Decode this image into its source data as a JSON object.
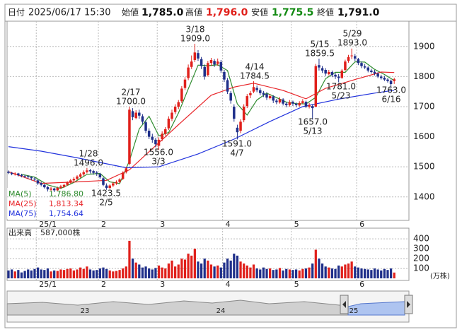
{
  "header": {
    "date_label": "日付",
    "date": "2025/06/17 15:30",
    "fields": [
      {
        "label": "始値",
        "value": "1,785.0",
        "color": "#111111"
      },
      {
        "label": "高値",
        "value": "1,796.0",
        "color": "#e0201b"
      },
      {
        "label": "安値",
        "value": "1,775.5",
        "color": "#138a13"
      },
      {
        "label": "終値",
        "value": "1,791.0",
        "color": "#111111"
      }
    ]
  },
  "navigator": {
    "labels": [
      "23",
      "24",
      "25"
    ]
  },
  "chart_data": [
    {
      "type": "candlestick",
      "up_color": "#e0201b",
      "down_color": "#1f2f8a",
      "xlim": [
        -0.43,
        122.5
      ],
      "ylim": [
        1322,
        1984
      ],
      "yticks": [
        1400,
        1500,
        1600,
        1700,
        1800,
        1900
      ],
      "grid": true,
      "xticks": [
        {
          "value": 9,
          "label": "25/1"
        },
        {
          "value": 28,
          "label": "2"
        },
        {
          "value": 46,
          "label": "3"
        },
        {
          "value": 66,
          "label": "4"
        },
        {
          "value": 87,
          "label": "5"
        },
        {
          "value": 107,
          "label": "6"
        }
      ],
      "open": [
        1484,
        1480,
        1475,
        1478,
        1473,
        1470,
        1469,
        1466,
        1461,
        1455,
        1446,
        1440,
        1433,
        1424,
        1428,
        1422,
        1430,
        1434,
        1440,
        1447,
        1455,
        1460,
        1467,
        1475,
        1483,
        1489,
        1486,
        1481,
        1476,
        1462,
        1438,
        1430,
        1438,
        1445,
        1450,
        1460,
        1482,
        1510,
        1685,
        1662,
        1680,
        1668,
        1648,
        1620,
        1600,
        1590,
        1570,
        1592,
        1610,
        1628,
        1660,
        1682,
        1700,
        1718,
        1762,
        1795,
        1832,
        1855,
        1878,
        1858,
        1832,
        1805,
        1845,
        1852,
        1842,
        1848,
        1815,
        1788,
        1745,
        1700,
        1630,
        1620,
        1655,
        1702,
        1738,
        1750,
        1762,
        1755,
        1746,
        1742,
        1728,
        1734,
        1720,
        1714,
        1724,
        1710,
        1705,
        1716,
        1710,
        1704,
        1712,
        1716,
        1700,
        1702,
        1700,
        1838,
        1828,
        1822,
        1808,
        1815,
        1806,
        1800,
        1796,
        1822,
        1852,
        1868,
        1868,
        1858,
        1845,
        1834,
        1830,
        1820,
        1816,
        1810,
        1800,
        1796,
        1790,
        1786,
        1785
      ],
      "high": [
        1488,
        1483,
        1482,
        1480,
        1477,
        1474,
        1472,
        1468,
        1465,
        1458,
        1450,
        1444,
        1436,
        1433,
        1431,
        1434,
        1440,
        1444,
        1452,
        1460,
        1466,
        1472,
        1480,
        1488,
        1496,
        1493,
        1490,
        1486,
        1480,
        1466,
        1445,
        1442,
        1450,
        1455,
        1462,
        1485,
        1500,
        1700,
        1695,
        1688,
        1690,
        1675,
        1655,
        1628,
        1610,
        1596,
        1598,
        1618,
        1632,
        1668,
        1690,
        1708,
        1722,
        1768,
        1798,
        1840,
        1870,
        1909,
        1888,
        1865,
        1840,
        1852,
        1862,
        1858,
        1860,
        1855,
        1822,
        1795,
        1752,
        1708,
        1640,
        1658,
        1708,
        1742,
        1752,
        1784.5,
        1770,
        1762,
        1752,
        1748,
        1742,
        1738,
        1726,
        1732,
        1728,
        1716,
        1722,
        1720,
        1714,
        1718,
        1725,
        1720,
        1712,
        1708,
        1842,
        1859.5,
        1835,
        1828,
        1822,
        1820,
        1812,
        1808,
        1825,
        1856,
        1872,
        1893,
        1875,
        1862,
        1850,
        1842,
        1834,
        1826,
        1822,
        1814,
        1806,
        1802,
        1795,
        1790,
        1796
      ],
      "low": [
        1476,
        1472,
        1471,
        1468,
        1465,
        1463,
        1460,
        1455,
        1452,
        1440,
        1435,
        1428,
        1418,
        1420,
        1416,
        1420,
        1427,
        1430,
        1437,
        1444,
        1450,
        1456,
        1463,
        1470,
        1478,
        1478,
        1474,
        1470,
        1460,
        1436,
        1423.5,
        1426,
        1433,
        1440,
        1446,
        1456,
        1478,
        1505,
        1655,
        1658,
        1660,
        1642,
        1612,
        1592,
        1580,
        1565,
        1556,
        1585,
        1604,
        1622,
        1652,
        1675,
        1692,
        1712,
        1755,
        1788,
        1825,
        1848,
        1852,
        1825,
        1790,
        1800,
        1835,
        1832,
        1836,
        1812,
        1782,
        1742,
        1710,
        1650,
        1591,
        1612,
        1648,
        1695,
        1728,
        1745,
        1748,
        1738,
        1732,
        1722,
        1724,
        1712,
        1708,
        1710,
        1704,
        1698,
        1700,
        1702,
        1698,
        1700,
        1708,
        1695,
        1694,
        1657,
        1698,
        1820,
        1812,
        1802,
        1804,
        1798,
        1792,
        1781,
        1792,
        1818,
        1846,
        1858,
        1852,
        1838,
        1828,
        1825,
        1814,
        1810,
        1804,
        1795,
        1790,
        1785,
        1780,
        1763,
        1775.5
      ],
      "close": [
        1480,
        1476,
        1478,
        1472,
        1470,
        1468,
        1466,
        1462,
        1458,
        1445,
        1440,
        1432,
        1425,
        1428,
        1422,
        1430,
        1435,
        1440,
        1448,
        1455,
        1460,
        1468,
        1475,
        1482,
        1488,
        1485,
        1480,
        1478,
        1465,
        1440,
        1430,
        1438,
        1445,
        1450,
        1458,
        1480,
        1495,
        1690,
        1665,
        1680,
        1670,
        1650,
        1620,
        1600,
        1590,
        1575,
        1590,
        1610,
        1625,
        1660,
        1680,
        1700,
        1715,
        1760,
        1790,
        1830,
        1850,
        1880,
        1860,
        1835,
        1800,
        1845,
        1855,
        1840,
        1850,
        1820,
        1790,
        1750,
        1720,
        1660,
        1615,
        1650,
        1700,
        1735,
        1745,
        1765,
        1755,
        1745,
        1740,
        1730,
        1735,
        1720,
        1715,
        1725,
        1710,
        1705,
        1715,
        1710,
        1705,
        1712,
        1718,
        1700,
        1705,
        1695,
        1835,
        1830,
        1820,
        1810,
        1815,
        1805,
        1800,
        1795,
        1820,
        1850,
        1865,
        1870,
        1860,
        1845,
        1835,
        1830,
        1820,
        1815,
        1810,
        1800,
        1795,
        1790,
        1785,
        1775,
        1791
      ],
      "series": [
        {
          "name": "MA(5)",
          "color": "#2e8b2e",
          "last_label": "1,786.80",
          "x": [
            4,
            8,
            12,
            16,
            20,
            24,
            28,
            31,
            34,
            37,
            40,
            43,
            46,
            49,
            52,
            55,
            58,
            61,
            64,
            67,
            70,
            73,
            76,
            79,
            82,
            85,
            88,
            91,
            94,
            97,
            100,
            103,
            106,
            109,
            112,
            115,
            118
          ],
          "values": [
            1475,
            1466,
            1440,
            1428,
            1448,
            1475,
            1478,
            1450,
            1444,
            1520,
            1626,
            1668,
            1603,
            1614,
            1679,
            1759,
            1838,
            1836,
            1839,
            1820,
            1709,
            1672,
            1722,
            1745,
            1730,
            1715,
            1710,
            1709,
            1731,
            1793,
            1814,
            1814,
            1849,
            1848,
            1824,
            1807,
            1786.8
          ]
        },
        {
          "name": "MA(25)",
          "color": "#e8262a",
          "last_label": "1,813.34",
          "x": [
            0,
            10,
            21,
            30,
            37,
            42,
            47,
            52,
            62,
            69,
            75,
            84,
            91,
            97,
            106,
            114,
            118
          ],
          "values": [
            1484,
            1445,
            1450,
            1455,
            1490,
            1540,
            1590,
            1640,
            1738,
            1765,
            1778,
            1754,
            1726,
            1761,
            1790,
            1815,
            1813.34
          ]
        },
        {
          "name": "MA(75)",
          "color": "#2233dd",
          "last_label": "1,754.64",
          "x": [
            0,
            10,
            21,
            30,
            36,
            46,
            58,
            69,
            80,
            90,
            101,
            112,
            118
          ],
          "values": [
            1567,
            1552,
            1530,
            1510,
            1497,
            1500,
            1543,
            1592,
            1651,
            1700,
            1725,
            1745,
            1754.64
          ]
        }
      ],
      "annotations": [
        {
          "date": "1/28",
          "value": 1496,
          "value_label": "1496.0"
        },
        {
          "date": "2/5",
          "value": 1423.5,
          "value_label": "1423.5"
        },
        {
          "date": "2/17",
          "value": 1700,
          "value_label": "1700.0"
        },
        {
          "date": "3/3",
          "value": 1556,
          "value_label": "1556.0"
        },
        {
          "date": "3/18",
          "value": 1909,
          "value_label": "1909.0"
        },
        {
          "date": "4/7",
          "value": 1591,
          "value_label": "1591.0"
        },
        {
          "date": "4/14",
          "value": 1784.5,
          "value_label": "1784.5"
        },
        {
          "date": "5/13",
          "value": 1657,
          "value_label": "1657.0"
        },
        {
          "date": "5/15",
          "value": 1859.5,
          "value_label": "1859.5"
        },
        {
          "date": "5/23",
          "value": 1781,
          "value_label": "1781.0"
        },
        {
          "date": "5/29",
          "value": 1893,
          "value_label": "1893.0"
        },
        {
          "date": "6/16",
          "value": 1763,
          "value_label": "1763.0"
        }
      ]
    },
    {
      "type": "bar",
      "title": "出来高",
      "value_label": "587,000株",
      "unit": "(万株)",
      "ylim": [
        -21,
        508
      ],
      "yticks": [
        100,
        200,
        300,
        400
      ],
      "values": [
        80,
        90,
        70,
        85,
        60,
        75,
        90,
        80,
        95,
        110,
        90,
        85,
        100,
        70,
        80,
        75,
        90,
        85,
        95,
        100,
        80,
        90,
        110,
        95,
        120,
        90,
        80,
        85,
        100,
        110,
        95,
        80,
        70,
        75,
        85,
        100,
        120,
        380,
        200,
        160,
        140,
        110,
        120,
        100,
        90,
        105,
        130,
        110,
        100,
        150,
        180,
        120,
        140,
        200,
        190,
        250,
        230,
        300,
        170,
        150,
        200,
        180,
        140,
        120,
        130,
        110,
        160,
        200,
        180,
        250,
        230,
        170,
        150,
        130,
        110,
        140,
        100,
        90,
        110,
        95,
        100,
        85,
        90,
        105,
        80,
        95,
        90,
        85,
        90,
        80,
        95,
        100,
        110,
        150,
        290,
        200,
        150,
        120,
        110,
        100,
        95,
        130,
        120,
        140,
        150,
        170,
        120,
        110,
        100,
        95,
        90,
        85,
        100,
        90,
        80,
        95,
        85,
        100,
        58.7
      ]
    }
  ]
}
